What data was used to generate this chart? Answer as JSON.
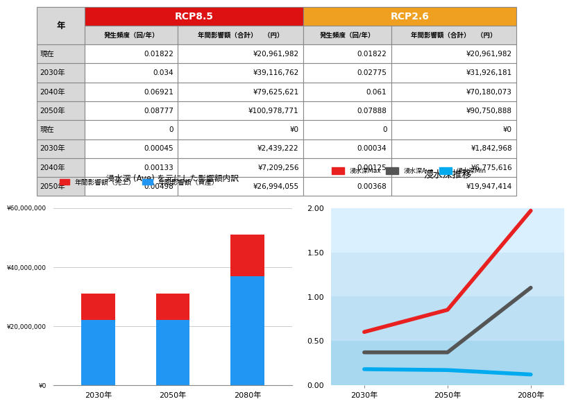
{
  "table": {
    "col_header_rcp85": "RCP8.5",
    "col_header_rcp26": "RCP2.6",
    "col_header_rcp85_color": "#dd1111",
    "col_header_rcp26_color": "#f0a020",
    "sub_headers": [
      "発生頻度（回/年）",
      "年間影響額（合計）　（円）",
      "発生頻度（回/年）",
      "年間影響額（合計）　（円）"
    ],
    "row_header": "年",
    "rows": [
      [
        "現在",
        "0.01822",
        "¥20,961,982",
        "0.01822",
        "¥20,961,982"
      ],
      [
        "2030年",
        "0.034",
        "¥39,116,762",
        "0.02775",
        "¥31,926,181"
      ],
      [
        "2040年",
        "0.06921",
        "¥79,625,621",
        "0.061",
        "¥70,180,073"
      ],
      [
        "2050年",
        "0.08777",
        "¥100,978,771",
        "0.07888",
        "¥90,750,888"
      ],
      [
        "現在",
        "0",
        "¥0",
        "0",
        "¥0"
      ],
      [
        "2030年",
        "0.00045",
        "¥2,439,222",
        "0.00034",
        "¥1,842,968"
      ],
      [
        "2040年",
        "0.00133",
        "¥7,209,256",
        "0.00125",
        "¥6,775,616"
      ],
      [
        "2050年",
        "0.00498",
        "¥26,994,055",
        "0.00368",
        "¥19,947,414"
      ]
    ]
  },
  "bar_chart": {
    "title": "浸水深 (Ave) を元にした影響額内訳",
    "legend_sales": "年間影響額（売上）",
    "legend_assets": "年間影響額（資産）",
    "color_sales": "#e82020",
    "color_assets": "#2196f3",
    "categories": [
      "2030年",
      "2050年",
      "2080年"
    ],
    "sales": [
      9000000,
      9000000,
      14000000
    ],
    "assets": [
      22000000,
      22000000,
      37000000
    ],
    "ylim": [
      0,
      60000000
    ],
    "yticks": [
      0,
      20000000,
      40000000,
      60000000
    ],
    "ytick_labels": [
      "¥0",
      "¥20,000,000",
      "¥40,000,000",
      "¥60,000,000"
    ]
  },
  "line_chart": {
    "title": "浸水深推移",
    "legend_max": "浸水深Max",
    "legend_ave": "浸水深Ave",
    "legend_min": "浸水深Min",
    "color_max": "#e82020",
    "color_ave": "#555555",
    "color_min": "#00aaee",
    "categories": [
      "2030年",
      "2050年",
      "2080年"
    ],
    "max_values": [
      0.6,
      0.85,
      1.97
    ],
    "ave_values": [
      0.37,
      0.37,
      1.1
    ],
    "min_values": [
      0.18,
      0.17,
      0.12
    ],
    "ylim": [
      0.0,
      2.0
    ],
    "yticks": [
      0.0,
      0.5,
      1.0,
      1.5,
      2.0
    ],
    "bg_bands": [
      {
        "ymin": 0.0,
        "ymax": 0.5,
        "color": "#a8d8f0"
      },
      {
        "ymin": 0.5,
        "ymax": 1.0,
        "color": "#bde0f5"
      },
      {
        "ymin": 1.0,
        "ymax": 1.5,
        "color": "#cce8f8"
      },
      {
        "ymin": 1.5,
        "ymax": 2.0,
        "color": "#daf0ff"
      }
    ],
    "linewidth": 4
  }
}
